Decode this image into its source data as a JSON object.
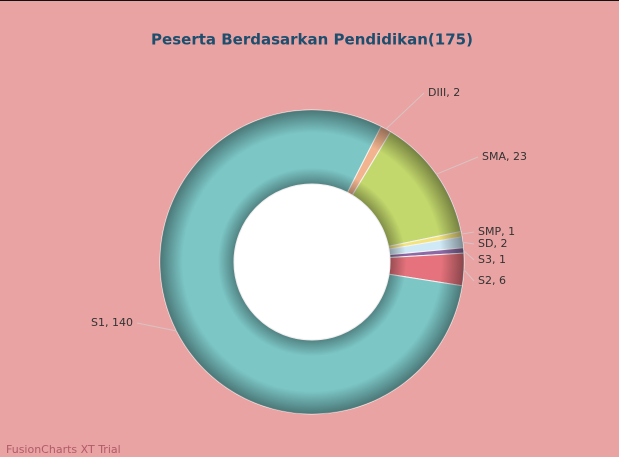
{
  "chart_data": {
    "type": "doughnut",
    "title": "Peserta Berdasarkan Pendidikan(175)",
    "categories": [
      "DIII",
      "SMA",
      "SMP",
      "SD",
      "S3",
      "S2",
      "S1"
    ],
    "values": [
      2,
      23,
      1,
      2,
      1,
      6,
      140
    ],
    "label_separator": ", ",
    "colors": [
      "#f2b48e",
      "#c3d86c",
      "#f3e37a",
      "#cfe9f6",
      "#8d6aa6",
      "#e5727c",
      "#7cc6c6"
    ],
    "footer": "FusionCharts XT Trial"
  }
}
